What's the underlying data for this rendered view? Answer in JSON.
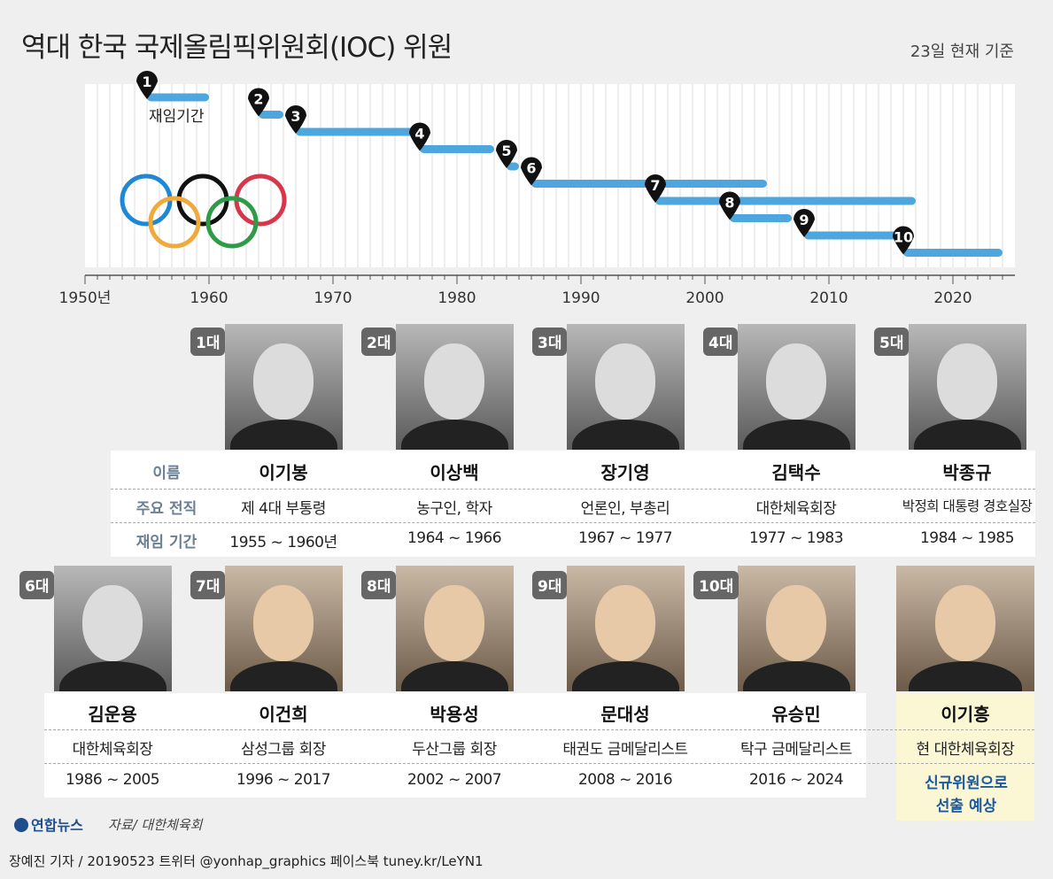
{
  "title": "역대 한국 국제올림픽위원회(IOC) 위원",
  "as_of": "23일 현재 기준",
  "chart_data": {
    "type": "gantt",
    "xlim": [
      1950,
      2024
    ],
    "ticks": [
      "1950년",
      "1960",
      "1970",
      "1980",
      "1990",
      "2000",
      "2010",
      "2020"
    ],
    "tick_years": [
      1950,
      1960,
      1970,
      1980,
      1990,
      2000,
      2010,
      2020
    ],
    "bar_label": "재임기간",
    "bars": [
      {
        "label": "1",
        "start": 1955,
        "end": 1960
      },
      {
        "label": "2",
        "start": 1964,
        "end": 1966
      },
      {
        "label": "3",
        "start": 1967,
        "end": 1977
      },
      {
        "label": "4",
        "start": 1977,
        "end": 1983
      },
      {
        "label": "5",
        "start": 1984,
        "end": 1985
      },
      {
        "label": "6",
        "start": 1986,
        "end": 2005
      },
      {
        "label": "7",
        "start": 1996,
        "end": 2017
      },
      {
        "label": "8",
        "start": 2002,
        "end": 2007
      },
      {
        "label": "9",
        "start": 2008,
        "end": 2016
      },
      {
        "label": "10",
        "start": 2016,
        "end": 2024
      }
    ],
    "bar_color": "#4ea6de"
  },
  "row_labels": {
    "name": "이름",
    "position": "주요 전직",
    "period": "재임 기간"
  },
  "members": [
    {
      "badge": "1대",
      "name": "이기봉",
      "position": "제 4대 부통령",
      "period": "1955 ~ 1960년"
    },
    {
      "badge": "2대",
      "name": "이상백",
      "position": "농구인, 학자",
      "period": "1964 ~ 1966"
    },
    {
      "badge": "3대",
      "name": "장기영",
      "position": "언론인, 부총리",
      "period": "1967 ~ 1977"
    },
    {
      "badge": "4대",
      "name": "김택수",
      "position": "대한체육회장",
      "period": "1977 ~ 1983"
    },
    {
      "badge": "5대",
      "name": "박종규",
      "position": "박정희 대통령 경호실장",
      "period": "1984 ~ 1985"
    },
    {
      "badge": "6대",
      "name": "김운용",
      "position": "대한체육회장",
      "period": "1986 ~ 2005"
    },
    {
      "badge": "7대",
      "name": "이건희",
      "position": "삼성그룹 회장",
      "period": "1996 ~ 2017"
    },
    {
      "badge": "8대",
      "name": "박용성",
      "position": "두산그룹 회장",
      "period": "2002 ~ 2007"
    },
    {
      "badge": "9대",
      "name": "문대성",
      "position": "태권도 금메달리스트",
      "period": "2008 ~ 2016"
    },
    {
      "badge": "10대",
      "name": "유승민",
      "position": "탁구 금메달리스트",
      "period": "2016 ~ 2024"
    }
  ],
  "new_member": {
    "name": "이기흥",
    "position": "현 대한체육회장",
    "note_line1": "신규위원으로",
    "note_line2": "선출 예상"
  },
  "logo_text": "연합뉴스",
  "source": "자료/ 대한체육회",
  "footer": "장예진 기자 / 20190523 트위터 @yonhap_graphics  페이스북 tuney.kr/LeYN1",
  "colors": {
    "bar": "#4ea6de",
    "highlight": "#fbf6d3",
    "badge": "#666666",
    "accent_blue": "#1c5aa0"
  }
}
